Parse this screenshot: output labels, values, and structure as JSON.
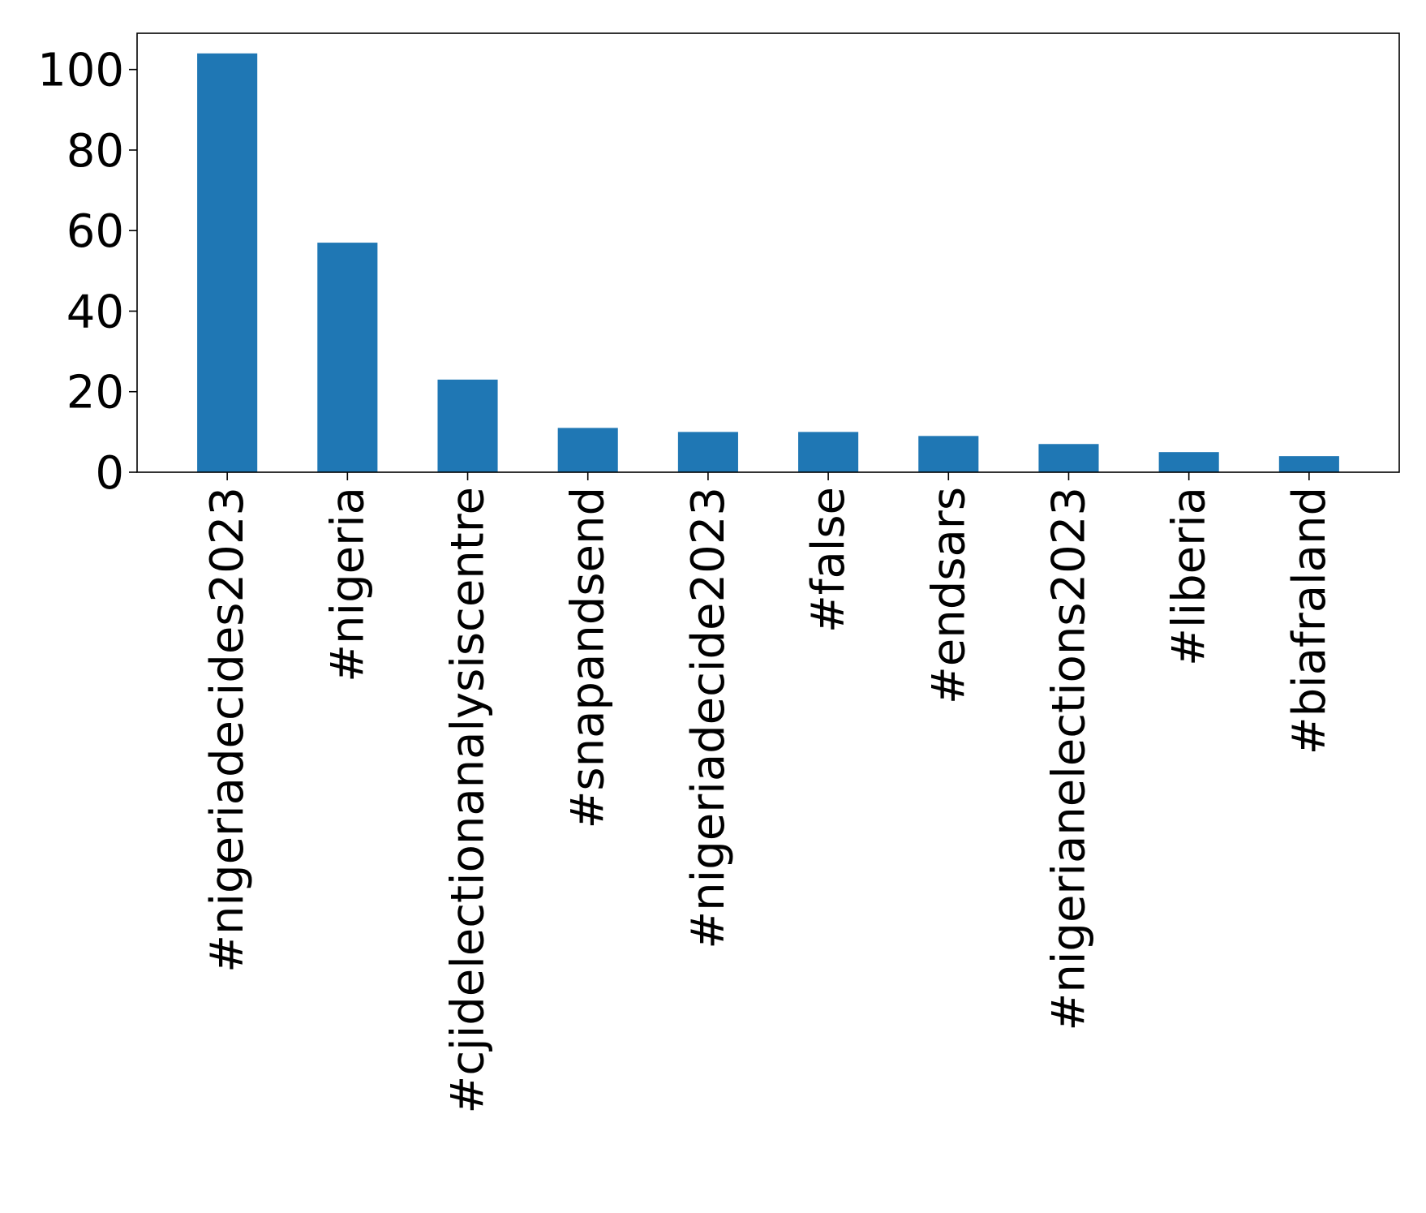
{
  "chart_data": {
    "type": "bar",
    "title": "",
    "xlabel": "",
    "ylabel": "",
    "categories": [
      "#nigeriadecides2023",
      "#nigeria",
      "#cjidelectionanalysiscentre",
      "#snapandsend",
      "#nigeriadecide2023",
      "#false",
      "#endsars",
      "#nigerianelections2023",
      "#liberia",
      "#biafraland"
    ],
    "values": [
      104,
      57,
      23,
      11,
      10,
      10,
      9,
      7,
      5,
      4
    ],
    "ylim": [
      0,
      109
    ],
    "yticks": [
      0,
      20,
      40,
      60,
      80,
      100
    ],
    "bar_color": "#1f77b4",
    "grid": false,
    "legend": "none"
  }
}
